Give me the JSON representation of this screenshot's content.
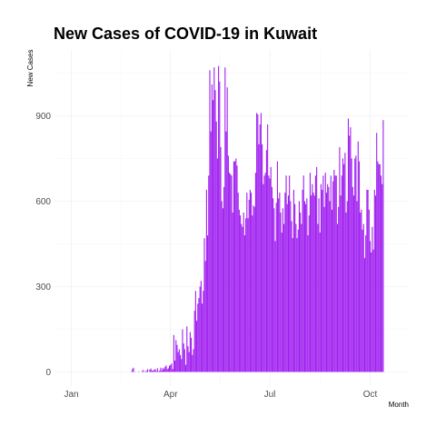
{
  "chart_data": {
    "type": "bar",
    "title": "New Cases of COVID-19 in Kuwait",
    "xlabel": "Month",
    "ylabel": "New Cases",
    "x_unit": "day_of_year_2020",
    "xlim": [
      1,
      304
    ],
    "ylim": [
      0,
      1080
    ],
    "x_ticks": [
      {
        "label": "Jan",
        "day": 1
      },
      {
        "label": "Apr",
        "day": 92
      },
      {
        "label": "Jul",
        "day": 183
      },
      {
        "label": "Oct",
        "day": 275
      }
    ],
    "y_ticks": [
      0,
      300,
      600,
      900
    ],
    "bar_color": "#A020F0",
    "grid": true,
    "legend": "none",
    "series": [
      {
        "values": [
          [
            56,
            1
          ],
          [
            57,
            10
          ],
          [
            58,
            15
          ],
          [
            60,
            1
          ],
          [
            63,
            2
          ],
          [
            66,
            3
          ],
          [
            67,
            7
          ],
          [
            69,
            3
          ],
          [
            70,
            4
          ],
          [
            71,
            10
          ],
          [
            73,
            8
          ],
          [
            74,
            12
          ],
          [
            75,
            5
          ],
          [
            76,
            4
          ],
          [
            77,
            8
          ],
          [
            78,
            10
          ],
          [
            79,
            3
          ],
          [
            80,
            13
          ],
          [
            81,
            2
          ],
          [
            82,
            5
          ],
          [
            83,
            15
          ],
          [
            84,
            6
          ],
          [
            85,
            14
          ],
          [
            86,
            10
          ],
          [
            87,
            18
          ],
          [
            88,
            23
          ],
          [
            89,
            10
          ],
          [
            90,
            13
          ],
          [
            91,
            22
          ],
          [
            92,
            25
          ],
          [
            93,
            30
          ],
          [
            94,
            10
          ],
          [
            95,
            130
          ],
          [
            96,
            40
          ],
          [
            97,
            112
          ],
          [
            98,
            95
          ],
          [
            99,
            70
          ],
          [
            100,
            80
          ],
          [
            101,
            60
          ],
          [
            102,
            45
          ],
          [
            103,
            150
          ],
          [
            104,
            100
          ],
          [
            105,
            80
          ],
          [
            106,
            25
          ],
          [
            107,
            160
          ],
          [
            108,
            90
          ],
          [
            109,
            70
          ],
          [
            110,
            140
          ],
          [
            111,
            120
          ],
          [
            112,
            60
          ],
          [
            113,
            80
          ],
          [
            114,
            215
          ],
          [
            115,
            285
          ],
          [
            116,
            180
          ],
          [
            117,
            240
          ],
          [
            118,
            260
          ],
          [
            119,
            300
          ],
          [
            120,
            320
          ],
          [
            121,
            240
          ],
          [
            122,
            285
          ],
          [
            123,
            470
          ],
          [
            124,
            390
          ],
          [
            125,
            640
          ],
          [
            126,
            480
          ],
          [
            127,
            690
          ],
          [
            128,
            1060
          ],
          [
            129,
            845
          ],
          [
            130,
            1010
          ],
          [
            131,
            955
          ],
          [
            132,
            1070
          ],
          [
            133,
            990
          ],
          [
            134,
            880
          ],
          [
            135,
            750
          ],
          [
            136,
            1075
          ],
          [
            137,
            1020
          ],
          [
            138,
            790
          ],
          [
            139,
            600
          ],
          [
            140,
            575
          ],
          [
            141,
            650
          ],
          [
            142,
            1070
          ],
          [
            143,
            845
          ],
          [
            144,
            1000
          ],
          [
            145,
            760
          ],
          [
            146,
            700
          ],
          [
            147,
            695
          ],
          [
            148,
            690
          ],
          [
            149,
            560
          ],
          [
            150,
            740
          ],
          [
            151,
            740
          ],
          [
            152,
            750
          ],
          [
            153,
            725
          ],
          [
            154,
            630
          ],
          [
            155,
            570
          ],
          [
            156,
            550
          ],
          [
            157,
            520
          ],
          [
            158,
            510
          ],
          [
            159,
            560
          ],
          [
            160,
            480
          ],
          [
            161,
            540
          ],
          [
            162,
            630
          ],
          [
            163,
            540
          ],
          [
            164,
            605
          ],
          [
            165,
            640
          ],
          [
            166,
            630
          ],
          [
            167,
            550
          ],
          [
            168,
            585
          ],
          [
            169,
            580
          ],
          [
            170,
            700
          ],
          [
            171,
            910
          ],
          [
            172,
            905
          ],
          [
            173,
            800
          ],
          [
            174,
            870
          ],
          [
            175,
            910
          ],
          [
            176,
            800
          ],
          [
            177,
            660
          ],
          [
            178,
            690
          ],
          [
            179,
            700
          ],
          [
            180,
            780
          ],
          [
            181,
            870
          ],
          [
            182,
            690
          ],
          [
            183,
            680
          ],
          [
            184,
            720
          ],
          [
            185,
            650
          ],
          [
            186,
            610
          ],
          [
            187,
            575
          ],
          [
            188,
            460
          ],
          [
            189,
            595
          ],
          [
            190,
            740
          ],
          [
            191,
            610
          ],
          [
            192,
            630
          ],
          [
            193,
            560
          ],
          [
            194,
            490
          ],
          [
            195,
            575
          ],
          [
            196,
            520
          ],
          [
            197,
            630
          ],
          [
            198,
            690
          ],
          [
            199,
            590
          ],
          [
            200,
            620
          ],
          [
            201,
            690
          ],
          [
            202,
            600
          ],
          [
            203,
            530
          ],
          [
            204,
            470
          ],
          [
            205,
            640
          ],
          [
            206,
            590
          ],
          [
            207,
            520
          ],
          [
            208,
            470
          ],
          [
            209,
            500
          ],
          [
            210,
            600
          ],
          [
            211,
            560
          ],
          [
            212,
            520
          ],
          [
            213,
            640
          ],
          [
            214,
            690
          ],
          [
            215,
            600
          ],
          [
            216,
            590
          ],
          [
            217,
            610
          ],
          [
            218,
            480
          ],
          [
            219,
            550
          ],
          [
            220,
            700
          ],
          [
            221,
            620
          ],
          [
            222,
            660
          ],
          [
            223,
            630
          ],
          [
            224,
            620
          ],
          [
            225,
            690
          ],
          [
            226,
            720
          ],
          [
            227,
            520
          ],
          [
            228,
            610
          ],
          [
            229,
            490
          ],
          [
            230,
            660
          ],
          [
            231,
            640
          ],
          [
            232,
            690
          ],
          [
            233,
            580
          ],
          [
            234,
            700
          ],
          [
            235,
            630
          ],
          [
            236,
            660
          ],
          [
            237,
            650
          ],
          [
            238,
            600
          ],
          [
            239,
            690
          ],
          [
            240,
            570
          ],
          [
            241,
            670
          ],
          [
            242,
            710
          ],
          [
            243,
            690
          ],
          [
            244,
            690
          ],
          [
            245,
            520
          ],
          [
            246,
            580
          ],
          [
            247,
            790
          ],
          [
            248,
            620
          ],
          [
            249,
            690
          ],
          [
            250,
            750
          ],
          [
            251,
            730
          ],
          [
            252,
            770
          ],
          [
            253,
            560
          ],
          [
            254,
            600
          ],
          [
            255,
            890
          ],
          [
            256,
            830
          ],
          [
            257,
            860
          ],
          [
            258,
            750
          ],
          [
            259,
            650
          ],
          [
            260,
            620
          ],
          [
            261,
            750
          ],
          [
            262,
            760
          ],
          [
            263,
            600
          ],
          [
            264,
            810
          ],
          [
            265,
            740
          ],
          [
            266,
            560
          ],
          [
            267,
            570
          ],
          [
            268,
            500
          ],
          [
            269,
            520
          ],
          [
            270,
            400
          ],
          [
            271,
            480
          ],
          [
            272,
            640
          ],
          [
            273,
            640
          ],
          [
            274,
            570
          ],
          [
            275,
            460
          ],
          [
            276,
            420
          ],
          [
            277,
            510
          ],
          [
            278,
            430
          ],
          [
            279,
            640
          ],
          [
            280,
            620
          ],
          [
            281,
            840
          ],
          [
            282,
            740
          ],
          [
            283,
            730
          ],
          [
            284,
            730
          ],
          [
            285,
            690
          ],
          [
            286,
            660
          ],
          [
            287,
            885
          ]
        ]
      }
    ]
  }
}
